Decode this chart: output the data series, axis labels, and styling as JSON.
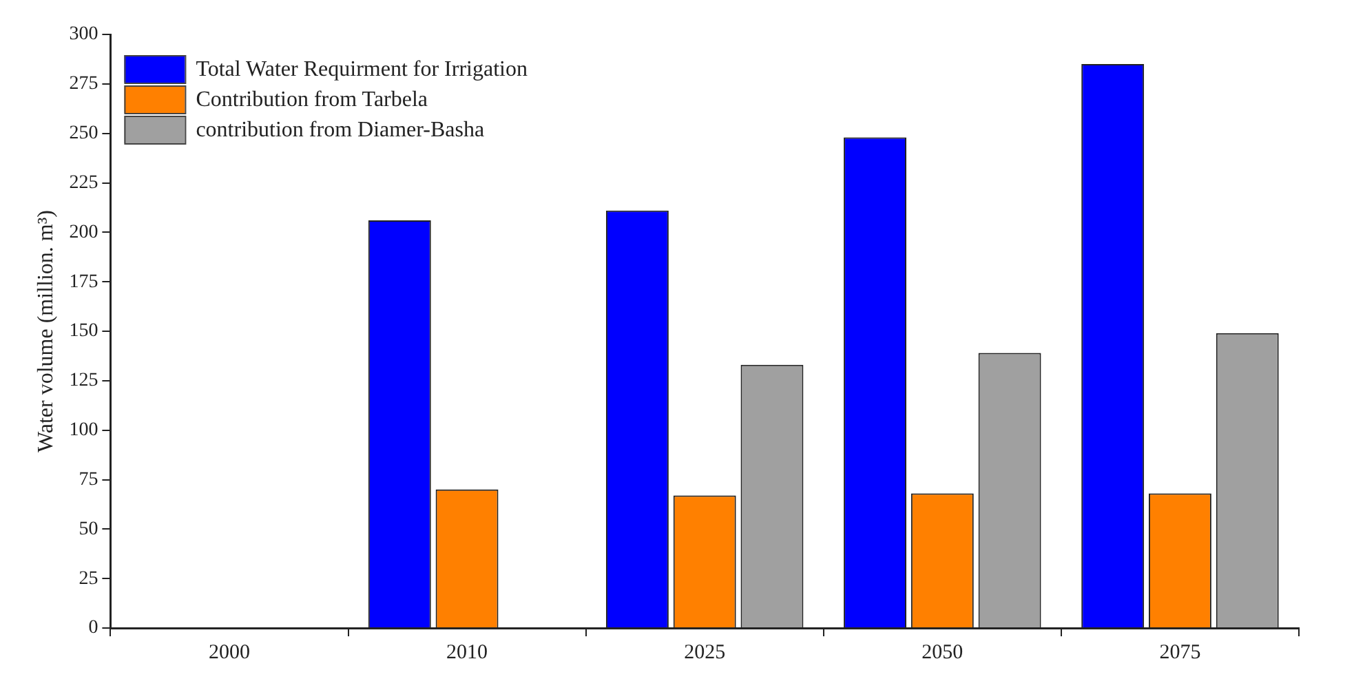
{
  "chart_data": {
    "type": "bar",
    "ylabel": "Water volume (million. m³)",
    "categories": [
      "2000",
      "2010",
      "2025",
      "2050",
      "2075"
    ],
    "series": [
      {
        "name": "Total Water Requirment for Irrigation",
        "color": "#0000ff",
        "values": [
          null,
          206,
          211,
          248,
          285
        ]
      },
      {
        "name": "Contribution from Tarbela",
        "color": "#ff8000",
        "values": [
          null,
          70,
          67,
          68,
          68
        ]
      },
      {
        "name": "contribution from Diamer-Basha",
        "color": "#a0a0a0",
        "values": [
          null,
          null,
          133,
          139,
          149
        ]
      }
    ],
    "ylim": [
      0,
      300
    ],
    "yticks": [
      0,
      25,
      50,
      75,
      100,
      125,
      150,
      175,
      200,
      225,
      250,
      275,
      300
    ],
    "grid": false,
    "legend": "top left"
  }
}
